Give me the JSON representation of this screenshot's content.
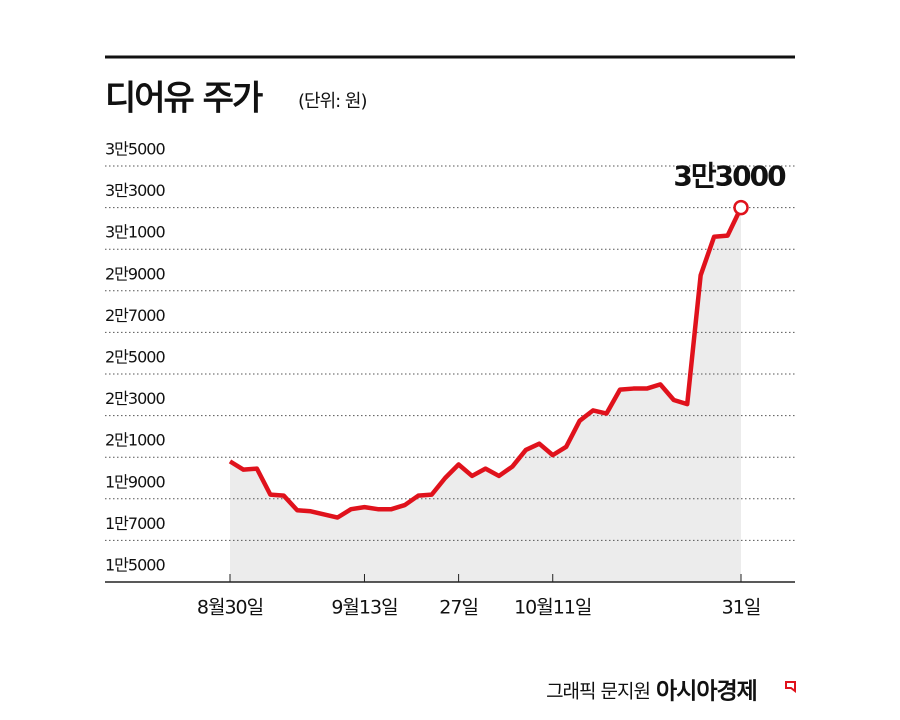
{
  "chart_data": {
    "type": "line",
    "title": "디어유 주가",
    "subtitle": "(단위: 원)",
    "categories": [
      "8월30일",
      null,
      null,
      null,
      null,
      null,
      null,
      null,
      null,
      null,
      "9월13일",
      null,
      null,
      null,
      null,
      null,
      null,
      "27일",
      null,
      null,
      null,
      null,
      null,
      null,
      "10월11일",
      null,
      null,
      null,
      null,
      null,
      null,
      null,
      null,
      null,
      null,
      null,
      null,
      null,
      "31일"
    ],
    "series": [
      {
        "name": "디어유",
        "color": "#e0121c",
        "values": [
          20800,
          20400,
          20450,
          19200,
          19150,
          18450,
          18400,
          18250,
          18100,
          18500,
          18600,
          18500,
          18500,
          18700,
          19150,
          19200,
          20000,
          20650,
          20100,
          20450,
          20100,
          20550,
          21350,
          21650,
          21100,
          21500,
          22750,
          23250,
          23100,
          24250,
          24300,
          24300,
          24500,
          23750,
          23550,
          29750,
          31600,
          31650,
          33000
        ],
        "value_labels": [
          null,
          null,
          null,
          null,
          null,
          null,
          null,
          null,
          null,
          null,
          null,
          null,
          null,
          null,
          null,
          null,
          null,
          null,
          null,
          null,
          null,
          null,
          null,
          null,
          null,
          null,
          null,
          null,
          null,
          null,
          null,
          null,
          null,
          null,
          null,
          null,
          null,
          null,
          "3만3000"
        ]
      }
    ],
    "ylim": [
      15000,
      35000
    ],
    "yticks": [
      {
        "value": 15000,
        "label": "1만5000"
      },
      {
        "value": 17000,
        "label": "1만7000"
      },
      {
        "value": 19000,
        "label": "1만9000"
      },
      {
        "value": 21000,
        "label": "2만1000"
      },
      {
        "value": 23000,
        "label": "2만3000"
      },
      {
        "value": 25000,
        "label": "2만5000"
      },
      {
        "value": 27000,
        "label": "2만7000"
      },
      {
        "value": 29000,
        "label": "2만9000"
      },
      {
        "value": 31000,
        "label": "3만1000"
      },
      {
        "value": 33000,
        "label": "3만3000"
      },
      {
        "value": 35000,
        "label": "3만5000"
      }
    ],
    "grid": true,
    "area_color": "#ececec",
    "credit": "그래픽 문지원",
    "source": "아시아경제"
  }
}
